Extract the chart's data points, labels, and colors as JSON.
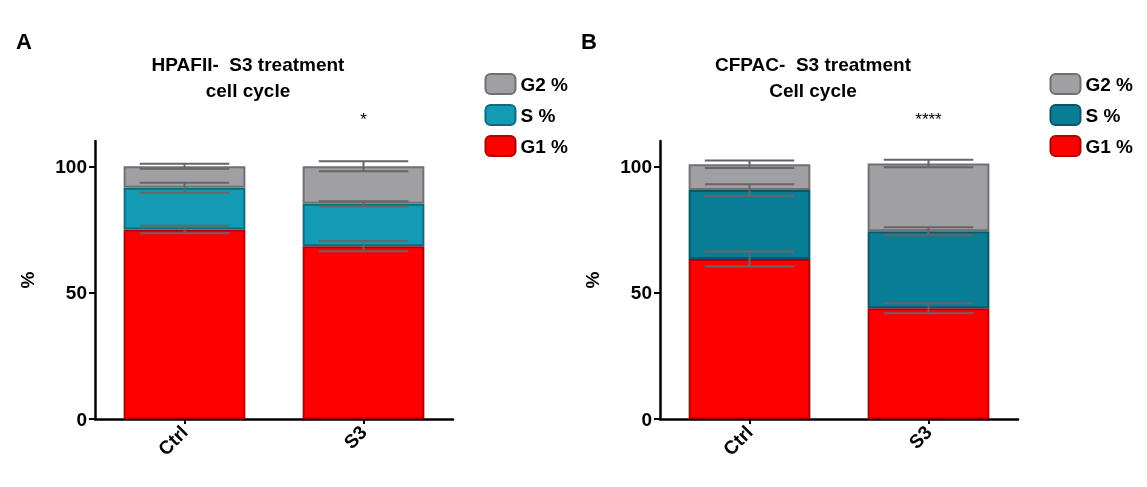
{
  "chart_data": [
    {
      "type": "bar",
      "title": "HPAFII-  S3 treatment\ncell cycle",
      "ylabel": "%",
      "categories": [
        "Ctrl",
        "S3"
      ],
      "stacked": true,
      "series": [
        {
          "name": "G1 %",
          "color": "#ff0000",
          "values": [
            75,
            68.4
          ],
          "errors": [
            [
              73.5,
              76.5
            ],
            [
              66.4,
              70.4
            ]
          ]
        },
        {
          "name": "S %",
          "color": "#139ab4",
          "values": [
            16.5,
            16.8
          ],
          "errors": [
            [
              89.5,
              93.5
            ],
            [
              84.2,
              86.2
            ]
          ]
        },
        {
          "name": "G2 %",
          "color": "#a0a0a4",
          "values": [
            8.5,
            14.8
          ],
          "errors": [
            [
              99,
              101
            ],
            [
              98,
              102
            ]
          ]
        }
      ],
      "ylim": [
        0,
        110
      ],
      "yticks": [
        0,
        50,
        100
      ],
      "grid": false,
      "legend": "top right",
      "annotations": [
        "A",
        "*"
      ]
    },
    {
      "type": "bar",
      "title": "CFPAC-  S3 treatment\nCell cycle",
      "ylabel": "%",
      "categories": [
        "Ctrl",
        "S3"
      ],
      "stacked": true,
      "series": [
        {
          "name": "G1 %",
          "color": "#ff0000",
          "values": [
            63.3,
            43.8
          ],
          "errors": [
            [
              60.3,
              66.3
            ],
            [
              41.8,
              45.8
            ]
          ]
        },
        {
          "name": "S %",
          "color": "#0a7d96",
          "values": [
            27.3,
            30.5
          ],
          "errors": [
            [
              88.3,
              92.9
            ],
            [
              72.7,
              75.9
            ]
          ]
        },
        {
          "name": "G2 %",
          "color": "#a0a0a4",
          "values": [
            10.2,
            26.8
          ],
          "errors": [
            [
              99.3,
              102.3
            ],
            [
              99.6,
              102.6
            ]
          ]
        }
      ],
      "ylim": [
        0,
        110
      ],
      "yticks": [
        0,
        50,
        100
      ],
      "grid": false,
      "legend": "top right",
      "annotations": [
        "B",
        "****"
      ]
    }
  ]
}
